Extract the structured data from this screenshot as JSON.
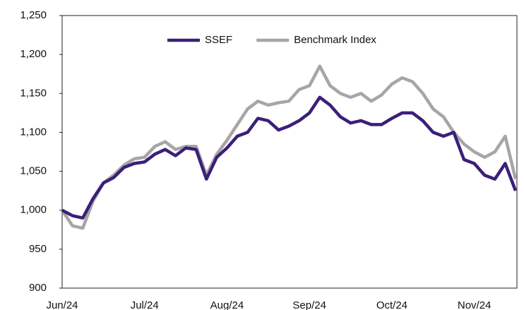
{
  "chart_data": {
    "type": "line",
    "categories": [
      "Jun/24",
      null,
      null,
      null,
      null,
      null,
      null,
      null,
      "Jul/24",
      null,
      null,
      null,
      null,
      null,
      null,
      null,
      "Aug/24",
      null,
      null,
      null,
      null,
      null,
      null,
      null,
      "Sep/24",
      null,
      null,
      null,
      null,
      null,
      null,
      null,
      "Oct/24",
      null,
      null,
      null,
      null,
      null,
      null,
      null,
      "Nov/24",
      null,
      null,
      null,
      null
    ],
    "series": [
      {
        "name": "SSEF",
        "color": "#3b1f7a",
        "values": [
          1000,
          993,
          990,
          1015,
          1035,
          1042,
          1055,
          1060,
          1062,
          1072,
          1078,
          1070,
          1080,
          1078,
          1040,
          1068,
          1080,
          1095,
          1100,
          1118,
          1115,
          1103,
          1108,
          1115,
          1125,
          1145,
          1135,
          1120,
          1112,
          1115,
          1110,
          1110,
          1118,
          1125,
          1125,
          1115,
          1100,
          1095,
          1100,
          1065,
          1060,
          1045,
          1040,
          1060,
          1025
        ]
      },
      {
        "name": "Benchmark Index",
        "color": "#a6a6a6",
        "values": [
          1000,
          980,
          977,
          1012,
          1035,
          1045,
          1058,
          1066,
          1068,
          1082,
          1088,
          1078,
          1082,
          1082,
          1045,
          1072,
          1090,
          1110,
          1130,
          1140,
          1135,
          1138,
          1140,
          1155,
          1160,
          1185,
          1160,
          1150,
          1145,
          1150,
          1140,
          1148,
          1162,
          1170,
          1165,
          1150,
          1130,
          1120,
          1100,
          1085,
          1075,
          1068,
          1075,
          1095,
          1040
        ]
      }
    ],
    "ylim": [
      900,
      1250
    ],
    "yticks": [
      900,
      950,
      {
        "value": 1000,
        "label": "1,000"
      },
      {
        "value": 1050,
        "label": "1,050"
      },
      {
        "value": 1100,
        "label": "1,100"
      },
      {
        "value": 1150,
        "label": "1,150"
      },
      {
        "value": 1200,
        "label": "1,200"
      },
      {
        "value": 1250,
        "label": "1,250"
      }
    ],
    "grid": false,
    "legend": "top"
  }
}
